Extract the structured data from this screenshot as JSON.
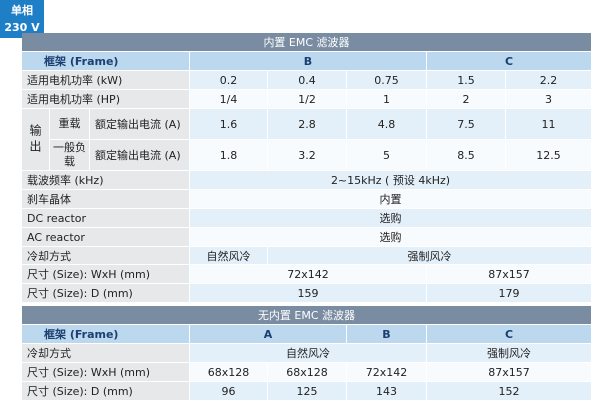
{
  "badge": {
    "phase": "单相",
    "voltage": "230 V"
  },
  "sections": [
    {
      "title": "内置 EMC 滤波器",
      "header": {
        "label": "框架 (Frame)",
        "frames": [
          "B",
          "C"
        ]
      },
      "output_group": "输出",
      "rows": [
        {
          "label": "适用电机功率 (kW)",
          "cells": [
            "0.2",
            "0.4",
            "0.75",
            "1.5",
            "2.2"
          ]
        },
        {
          "label": "适用电机功率 (HP)",
          "cells": [
            "1/4",
            "1/2",
            "1",
            "2",
            "3"
          ]
        },
        {
          "sub": "重载",
          "label": "额定输出电流 (A)",
          "cells": [
            "1.6",
            "2.8",
            "4.8",
            "7.5",
            "11"
          ]
        },
        {
          "sub": "一般负载",
          "label": "额定输出电流 (A)",
          "cells": [
            "1.8",
            "3.2",
            "5",
            "8.5",
            "12.5"
          ]
        },
        {
          "label": "载波频率 (kHz)",
          "cells": [
            "2~15kHz ( 预设 4kHz)"
          ]
        },
        {
          "label": "刹车晶体",
          "cells": [
            "内置"
          ]
        },
        {
          "label": "DC reactor",
          "cells": [
            "选购"
          ]
        },
        {
          "label": "AC reactor",
          "cells": [
            "选购"
          ]
        },
        {
          "label": "冷却方式",
          "cells": [
            "自然风冷",
            "强制风冷"
          ]
        },
        {
          "label": "尺寸 (Size): WxH (mm)",
          "cells": [
            "72x142",
            "87x157"
          ]
        },
        {
          "label": "尺寸 (Size): D (mm)",
          "cells": [
            "159",
            "179"
          ]
        }
      ]
    },
    {
      "title": "无内置 EMC 滤波器",
      "header": {
        "label": "框架 (Frame)",
        "frames": [
          "A",
          "B",
          "C"
        ]
      },
      "rows": [
        {
          "label": "冷却方式",
          "cells": [
            "自然风冷",
            "强制风冷"
          ]
        },
        {
          "label": "尺寸 (Size): WxH (mm)",
          "cells": [
            "68x128",
            "68x128",
            "72x142",
            "87x157"
          ]
        },
        {
          "label": "尺寸 (Size): D (mm)",
          "cells": [
            "96",
            "125",
            "143",
            "152"
          ]
        }
      ]
    }
  ]
}
